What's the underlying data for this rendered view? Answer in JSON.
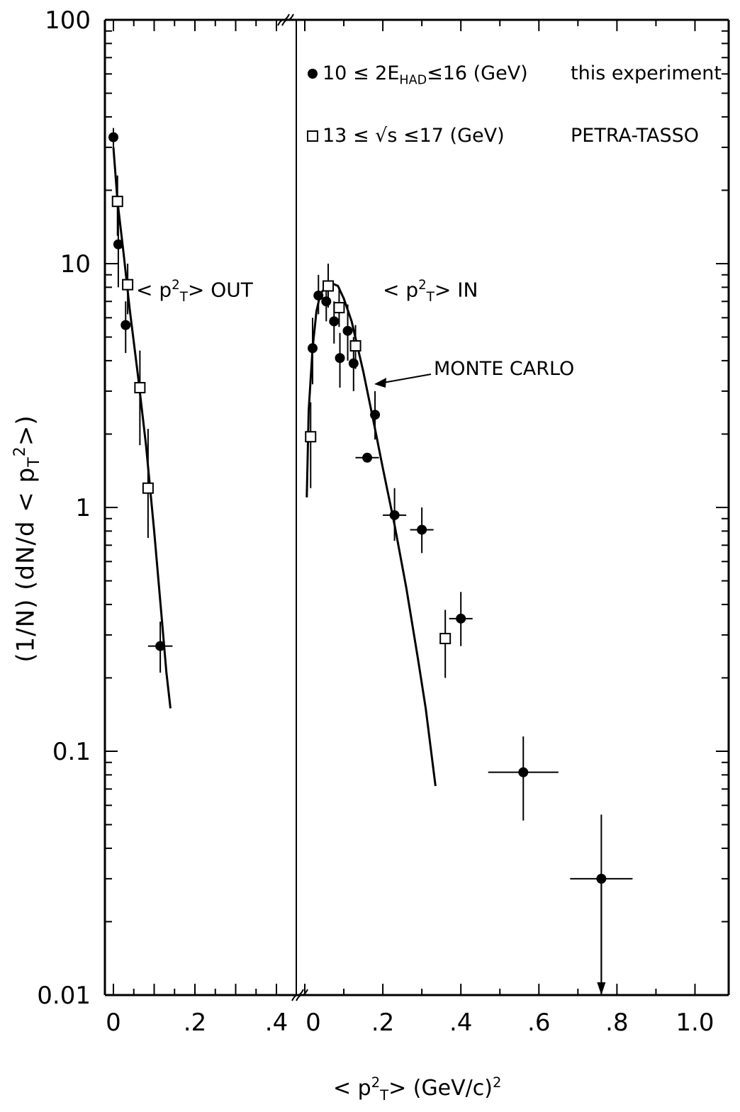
{
  "chart_data": [
    {
      "type": "scatter",
      "panel": "out",
      "panel_label": {
        "pre": "< p",
        "sup": "2",
        "sub": "T",
        "post": "> OUT"
      },
      "y_scale": "log",
      "ylim": [
        0.01,
        100
      ],
      "x_ticks": [
        "0",
        ".2",
        ".4"
      ],
      "xlim": [
        0,
        0.4
      ],
      "series": [
        {
          "marker": "filled-circle",
          "points": [
            {
              "x": 0.0,
              "y": 33,
              "yerr": [
                30,
                36
              ]
            },
            {
              "x": 0.012,
              "y": 12,
              "yerr": [
                8,
                16
              ]
            },
            {
              "x": 0.03,
              "y": 5.6,
              "yerr": [
                4.3,
                7
              ]
            },
            {
              "x": 0.115,
              "y": 0.27,
              "yerr": [
                0.21,
                0.34
              ],
              "xerr": [
                0.085,
                0.145
              ]
            }
          ]
        },
        {
          "marker": "open-square",
          "points": [
            {
              "x": 0.01,
              "y": 18,
              "yerr": [
                13,
                23
              ]
            },
            {
              "x": 0.035,
              "y": 8.2,
              "yerr": [
                6.2,
                10
              ]
            },
            {
              "x": 0.065,
              "y": 3.1,
              "yerr": [
                1.8,
                4.4
              ]
            },
            {
              "x": 0.085,
              "y": 1.2,
              "yerr": [
                0.75,
                2.1
              ]
            }
          ]
        },
        {
          "name": "MONTE CARLO",
          "line": true,
          "points": [
            [
              0.0,
              30
            ],
            [
              0.01,
              18
            ],
            [
              0.025,
              11
            ],
            [
              0.04,
              6.5
            ],
            [
              0.06,
              3.5
            ],
            [
              0.08,
              1.8
            ],
            [
              0.1,
              0.8
            ],
            [
              0.12,
              0.33
            ],
            [
              0.13,
              0.21
            ],
            [
              0.14,
              0.15
            ]
          ]
        }
      ]
    },
    {
      "type": "scatter",
      "panel": "in",
      "panel_label": {
        "pre": "< p",
        "sup": "2",
        "sub": "T",
        "post": "> IN"
      },
      "y_scale": "log",
      "ylim": [
        0.01,
        100
      ],
      "x_ticks": [
        "0",
        ".2",
        ".4",
        ".6",
        ".8",
        "1.0"
      ],
      "xlim": [
        0,
        1.05
      ],
      "series": [
        {
          "name": "10 ≤ 2E HAD ≤ 16 (GeV)",
          "marker": "filled-circle",
          "points": [
            {
              "x": 0.02,
              "y": 4.5,
              "yerr": [
                3.2,
                6
              ]
            },
            {
              "x": 0.035,
              "y": 7.4,
              "yerr": [
                6.2,
                9
              ]
            },
            {
              "x": 0.055,
              "y": 7.0,
              "yerr": [
                5.8,
                8.5
              ]
            },
            {
              "x": 0.075,
              "y": 5.8,
              "yerr": [
                4.7,
                7
              ]
            },
            {
              "x": 0.09,
              "y": 4.1,
              "yerr": [
                3.1,
                5.2
              ]
            },
            {
              "x": 0.11,
              "y": 5.3,
              "yerr": [
                4.0,
                6.8
              ]
            },
            {
              "x": 0.125,
              "y": 3.9,
              "yerr": [
                3.0,
                5.0
              ]
            },
            {
              "x": 0.18,
              "y": 2.4,
              "yerr": [
                1.9,
                3.0
              ]
            },
            {
              "x": 0.16,
              "y": 1.6,
              "xerr": [
                0.13,
                0.19
              ]
            },
            {
              "x": 0.23,
              "y": 0.93,
              "yerr": [
                0.73,
                1.2
              ],
              "xerr": [
                0.2,
                0.26
              ]
            },
            {
              "x": 0.3,
              "y": 0.81,
              "yerr": [
                0.65,
                1.0
              ],
              "xerr": [
                0.27,
                0.33
              ]
            },
            {
              "x": 0.4,
              "y": 0.35,
              "yerr": [
                0.27,
                0.45
              ],
              "xerr": [
                0.37,
                0.43
              ]
            },
            {
              "x": 0.56,
              "y": 0.082,
              "yerr": [
                0.052,
                0.115
              ],
              "xerr": [
                0.47,
                0.65
              ]
            },
            {
              "x": 0.76,
              "y": 0.03,
              "yerr": [
                0.01,
                0.055
              ],
              "xerr": [
                0.68,
                0.84
              ],
              "upper_limit_arrow": true
            }
          ]
        },
        {
          "name": "13 ≤ √s ≤ 17 (GeV)",
          "marker": "open-square",
          "points": [
            {
              "x": 0.015,
              "y": 1.95,
              "yerr": [
                1.2,
                2.7
              ]
            },
            {
              "x": 0.06,
              "y": 8.1,
              "yerr": [
                6.6,
                10
              ]
            },
            {
              "x": 0.088,
              "y": 6.6,
              "yerr": [
                5.5,
                8
              ]
            },
            {
              "x": 0.13,
              "y": 4.6,
              "yerr": [
                3.7,
                5.6
              ]
            },
            {
              "x": 0.36,
              "y": 0.29,
              "yerr": [
                0.2,
                0.38
              ]
            }
          ]
        },
        {
          "name": "MONTE CARLO",
          "line": true,
          "points": [
            [
              0.005,
              1.1
            ],
            [
              0.01,
              2.5
            ],
            [
              0.02,
              4.5
            ],
            [
              0.03,
              6.4
            ],
            [
              0.04,
              7.5
            ],
            [
              0.055,
              8.1
            ],
            [
              0.07,
              8.3
            ],
            [
              0.085,
              8.1
            ],
            [
              0.1,
              7.2
            ],
            [
              0.12,
              5.8
            ],
            [
              0.15,
              3.6
            ],
            [
              0.18,
              2.1
            ],
            [
              0.2,
              1.45
            ],
            [
              0.23,
              0.85
            ],
            [
              0.26,
              0.47
            ],
            [
              0.29,
              0.24
            ],
            [
              0.31,
              0.15
            ],
            [
              0.335,
              0.072
            ]
          ]
        }
      ]
    }
  ],
  "y_tick_labels": [
    "100",
    "10",
    "1",
    "0.1",
    "0.01"
  ],
  "ylabel": "(1/N) (dN/d < p T 2 >)",
  "xlabel": {
    "pre": "< p",
    "sup": "2",
    "sub": "T",
    "post": ">  (GeV/c)",
    "post_sup": "2"
  },
  "legend": {
    "circle_label": {
      "pre": "10 ≤ 2E",
      "sub": "HAD",
      "post": "≤16 (GeV)"
    },
    "circle_source": "this experiment",
    "square_label": "13 ≤ √s ≤17 (GeV)",
    "square_source": "PETRA-TASSO"
  },
  "annotation": "MONTE CARLO"
}
